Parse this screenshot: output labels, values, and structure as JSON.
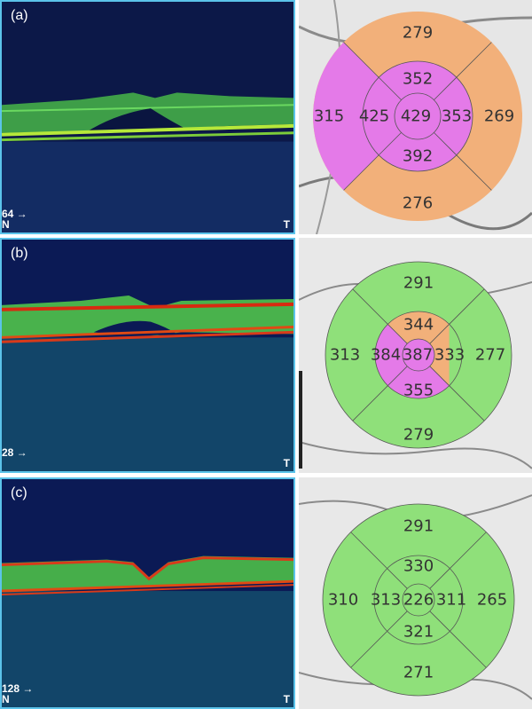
{
  "colors": {
    "panel_border": "#5bc3ea",
    "oct_background": "#0d1a4a",
    "retina_green": "#4cc94c",
    "rpe_red": "#d83a1a",
    "thickness_normal": "#8fe07a",
    "thickness_thick": "#f2b07a",
    "thickness_very_thick": "#e47ae8"
  },
  "panels": [
    {
      "label": "(a)",
      "scan_marker": "64 →",
      "nasal_label": "N",
      "temporal_label": "T",
      "thickness_map": {
        "outer": {
          "superior": "279",
          "nasal": "315",
          "temporal": "269",
          "inferior": "276"
        },
        "inner": {
          "superior": "352",
          "nasal": "425",
          "temporal": "353",
          "inferior": "392"
        },
        "center": "429",
        "sector_colors": {
          "outer_superior": "orange",
          "outer_temporal": "orange",
          "outer_inferior": "orange",
          "outer_nasal": "magenta",
          "inner_superior": "magenta",
          "inner_temporal": "magenta",
          "inner_inferior": "magenta",
          "inner_nasal": "magenta",
          "center": "magenta"
        }
      }
    },
    {
      "label": "(b)",
      "scan_marker": "28 →",
      "nasal_label": "",
      "temporal_label": "T",
      "thickness_map": {
        "outer": {
          "superior": "291",
          "nasal": "313",
          "temporal": "277",
          "inferior": "279"
        },
        "inner": {
          "superior": "344",
          "nasal": "384",
          "temporal": "333",
          "inferior": "355"
        },
        "center": "387",
        "sector_colors": {
          "outer_superior": "green",
          "outer_temporal": "green",
          "outer_inferior": "green",
          "outer_nasal": "green",
          "inner_superior": "orange",
          "inner_temporal": "orange",
          "inner_inferior": "magenta",
          "inner_nasal": "magenta",
          "center": "magenta"
        }
      }
    },
    {
      "label": "(c)",
      "scan_marker": "128 →",
      "nasal_label": "N",
      "temporal_label": "T",
      "thickness_map": {
        "outer": {
          "superior": "291",
          "nasal": "310",
          "temporal": "265",
          "inferior": "271"
        },
        "inner": {
          "superior": "330",
          "nasal": "313",
          "temporal": "311",
          "inferior": "321"
        },
        "center": "226",
        "sector_colors": {
          "outer_superior": "green",
          "outer_temporal": "green",
          "outer_inferior": "green",
          "outer_nasal": "green",
          "inner_superior": "green",
          "inner_temporal": "green",
          "inner_inferior": "green",
          "inner_nasal": "green",
          "center": "green"
        }
      }
    }
  ]
}
